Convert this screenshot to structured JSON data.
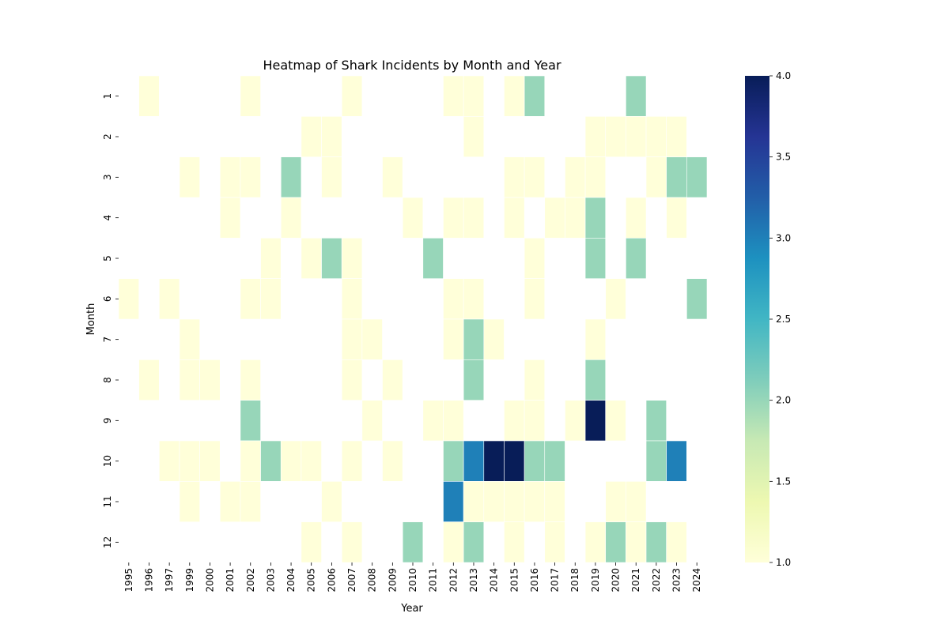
{
  "chart_data": {
    "type": "heatmap",
    "title": "Heatmap of Shark Incidents by Month and Year",
    "xlabel": "Year",
    "ylabel": "Month",
    "x_categories": [
      "1995",
      "1996",
      "1997",
      "1999",
      "2000",
      "2001",
      "2002",
      "2003",
      "2004",
      "2005",
      "2006",
      "2007",
      "2008",
      "2009",
      "2010",
      "2011",
      "2012",
      "2013",
      "2014",
      "2015",
      "2016",
      "2017",
      "2018",
      "2019",
      "2020",
      "2021",
      "2022",
      "2023",
      "2024"
    ],
    "y_categories": [
      "1",
      "2",
      "3",
      "4",
      "5",
      "6",
      "7",
      "8",
      "9",
      "10",
      "11",
      "12"
    ],
    "cells": [
      {
        "year": "1996",
        "month": "1",
        "value": 1
      },
      {
        "year": "2002",
        "month": "1",
        "value": 1
      },
      {
        "year": "2007",
        "month": "1",
        "value": 1
      },
      {
        "year": "2012",
        "month": "1",
        "value": 1
      },
      {
        "year": "2013",
        "month": "1",
        "value": 1
      },
      {
        "year": "2015",
        "month": "1",
        "value": 1
      },
      {
        "year": "2016",
        "month": "1",
        "value": 2
      },
      {
        "year": "2021",
        "month": "1",
        "value": 2
      },
      {
        "year": "2005",
        "month": "2",
        "value": 1
      },
      {
        "year": "2006",
        "month": "2",
        "value": 1
      },
      {
        "year": "2013",
        "month": "2",
        "value": 1
      },
      {
        "year": "2019",
        "month": "2",
        "value": 1
      },
      {
        "year": "2020",
        "month": "2",
        "value": 1
      },
      {
        "year": "2021",
        "month": "2",
        "value": 1
      },
      {
        "year": "2022",
        "month": "2",
        "value": 1
      },
      {
        "year": "2023",
        "month": "2",
        "value": 1
      },
      {
        "year": "1999",
        "month": "3",
        "value": 1
      },
      {
        "year": "2001",
        "month": "3",
        "value": 1
      },
      {
        "year": "2002",
        "month": "3",
        "value": 1
      },
      {
        "year": "2004",
        "month": "3",
        "value": 2
      },
      {
        "year": "2006",
        "month": "3",
        "value": 1
      },
      {
        "year": "2009",
        "month": "3",
        "value": 1
      },
      {
        "year": "2015",
        "month": "3",
        "value": 1
      },
      {
        "year": "2016",
        "month": "3",
        "value": 1
      },
      {
        "year": "2018",
        "month": "3",
        "value": 1
      },
      {
        "year": "2019",
        "month": "3",
        "value": 1
      },
      {
        "year": "2022",
        "month": "3",
        "value": 1
      },
      {
        "year": "2023",
        "month": "3",
        "value": 2
      },
      {
        "year": "2024",
        "month": "3",
        "value": 2
      },
      {
        "year": "2001",
        "month": "4",
        "value": 1
      },
      {
        "year": "2004",
        "month": "4",
        "value": 1
      },
      {
        "year": "2010",
        "month": "4",
        "value": 1
      },
      {
        "year": "2012",
        "month": "4",
        "value": 1
      },
      {
        "year": "2013",
        "month": "4",
        "value": 1
      },
      {
        "year": "2015",
        "month": "4",
        "value": 1
      },
      {
        "year": "2017",
        "month": "4",
        "value": 1
      },
      {
        "year": "2018",
        "month": "4",
        "value": 1
      },
      {
        "year": "2019",
        "month": "4",
        "value": 2
      },
      {
        "year": "2021",
        "month": "4",
        "value": 1
      },
      {
        "year": "2023",
        "month": "4",
        "value": 1
      },
      {
        "year": "2003",
        "month": "5",
        "value": 1
      },
      {
        "year": "2005",
        "month": "5",
        "value": 1
      },
      {
        "year": "2006",
        "month": "5",
        "value": 2
      },
      {
        "year": "2007",
        "month": "5",
        "value": 1
      },
      {
        "year": "2011",
        "month": "5",
        "value": 2
      },
      {
        "year": "2016",
        "month": "5",
        "value": 1
      },
      {
        "year": "2019",
        "month": "5",
        "value": 2
      },
      {
        "year": "2021",
        "month": "5",
        "value": 2
      },
      {
        "year": "1995",
        "month": "6",
        "value": 1
      },
      {
        "year": "1997",
        "month": "6",
        "value": 1
      },
      {
        "year": "2002",
        "month": "6",
        "value": 1
      },
      {
        "year": "2003",
        "month": "6",
        "value": 1
      },
      {
        "year": "2007",
        "month": "6",
        "value": 1
      },
      {
        "year": "2012",
        "month": "6",
        "value": 1
      },
      {
        "year": "2013",
        "month": "6",
        "value": 1
      },
      {
        "year": "2016",
        "month": "6",
        "value": 1
      },
      {
        "year": "2020",
        "month": "6",
        "value": 1
      },
      {
        "year": "2024",
        "month": "6",
        "value": 2
      },
      {
        "year": "1999",
        "month": "7",
        "value": 1
      },
      {
        "year": "2007",
        "month": "7",
        "value": 1
      },
      {
        "year": "2008",
        "month": "7",
        "value": 1
      },
      {
        "year": "2012",
        "month": "7",
        "value": 1
      },
      {
        "year": "2013",
        "month": "7",
        "value": 2
      },
      {
        "year": "2014",
        "month": "7",
        "value": 1
      },
      {
        "year": "2019",
        "month": "7",
        "value": 1
      },
      {
        "year": "1996",
        "month": "8",
        "value": 1
      },
      {
        "year": "1999",
        "month": "8",
        "value": 1
      },
      {
        "year": "2000",
        "month": "8",
        "value": 1
      },
      {
        "year": "2002",
        "month": "8",
        "value": 1
      },
      {
        "year": "2007",
        "month": "8",
        "value": 1
      },
      {
        "year": "2009",
        "month": "8",
        "value": 1
      },
      {
        "year": "2013",
        "month": "8",
        "value": 2
      },
      {
        "year": "2016",
        "month": "8",
        "value": 1
      },
      {
        "year": "2019",
        "month": "8",
        "value": 2
      },
      {
        "year": "2002",
        "month": "9",
        "value": 2
      },
      {
        "year": "2008",
        "month": "9",
        "value": 1
      },
      {
        "year": "2011",
        "month": "9",
        "value": 1
      },
      {
        "year": "2012",
        "month": "9",
        "value": 1
      },
      {
        "year": "2015",
        "month": "9",
        "value": 1
      },
      {
        "year": "2016",
        "month": "9",
        "value": 1
      },
      {
        "year": "2018",
        "month": "9",
        "value": 1
      },
      {
        "year": "2019",
        "month": "9",
        "value": 4
      },
      {
        "year": "2020",
        "month": "9",
        "value": 1
      },
      {
        "year": "2022",
        "month": "9",
        "value": 2
      },
      {
        "year": "1997",
        "month": "10",
        "value": 1
      },
      {
        "year": "1999",
        "month": "10",
        "value": 1
      },
      {
        "year": "2000",
        "month": "10",
        "value": 1
      },
      {
        "year": "2002",
        "month": "10",
        "value": 1
      },
      {
        "year": "2003",
        "month": "10",
        "value": 2
      },
      {
        "year": "2004",
        "month": "10",
        "value": 1
      },
      {
        "year": "2005",
        "month": "10",
        "value": 1
      },
      {
        "year": "2007",
        "month": "10",
        "value": 1
      },
      {
        "year": "2009",
        "month": "10",
        "value": 1
      },
      {
        "year": "2012",
        "month": "10",
        "value": 2
      },
      {
        "year": "2013",
        "month": "10",
        "value": 3
      },
      {
        "year": "2014",
        "month": "10",
        "value": 4
      },
      {
        "year": "2015",
        "month": "10",
        "value": 4
      },
      {
        "year": "2016",
        "month": "10",
        "value": 2
      },
      {
        "year": "2017",
        "month": "10",
        "value": 2
      },
      {
        "year": "2022",
        "month": "10",
        "value": 2
      },
      {
        "year": "2023",
        "month": "10",
        "value": 3
      },
      {
        "year": "1999",
        "month": "11",
        "value": 1
      },
      {
        "year": "2001",
        "month": "11",
        "value": 1
      },
      {
        "year": "2002",
        "month": "11",
        "value": 1
      },
      {
        "year": "2006",
        "month": "11",
        "value": 1
      },
      {
        "year": "2012",
        "month": "11",
        "value": 3
      },
      {
        "year": "2013",
        "month": "11",
        "value": 1
      },
      {
        "year": "2014",
        "month": "11",
        "value": 1
      },
      {
        "year": "2015",
        "month": "11",
        "value": 1
      },
      {
        "year": "2016",
        "month": "11",
        "value": 1
      },
      {
        "year": "2017",
        "month": "11",
        "value": 1
      },
      {
        "year": "2020",
        "month": "11",
        "value": 1
      },
      {
        "year": "2021",
        "month": "11",
        "value": 1
      },
      {
        "year": "2005",
        "month": "12",
        "value": 1
      },
      {
        "year": "2007",
        "month": "12",
        "value": 1
      },
      {
        "year": "2010",
        "month": "12",
        "value": 2
      },
      {
        "year": "2012",
        "month": "12",
        "value": 1
      },
      {
        "year": "2013",
        "month": "12",
        "value": 2
      },
      {
        "year": "2015",
        "month": "12",
        "value": 1
      },
      {
        "year": "2017",
        "month": "12",
        "value": 1
      },
      {
        "year": "2019",
        "month": "12",
        "value": 1
      },
      {
        "year": "2020",
        "month": "12",
        "value": 2
      },
      {
        "year": "2021",
        "month": "12",
        "value": 1
      },
      {
        "year": "2022",
        "month": "12",
        "value": 2
      },
      {
        "year": "2023",
        "month": "12",
        "value": 1
      }
    ],
    "colorbar": {
      "vmin": 1.0,
      "vmax": 4.0,
      "ticks": [
        "1.0",
        "1.5",
        "2.0",
        "2.5",
        "3.0",
        "3.5",
        "4.0"
      ],
      "colormap": "YlGnBu",
      "colors": [
        {
          "value": 1.0,
          "color": "#ffffd9"
        },
        {
          "value": 1.375,
          "color": "#edf8b1"
        },
        {
          "value": 1.75,
          "color": "#c7e9b4"
        },
        {
          "value": 2.125,
          "color": "#7fcdbb"
        },
        {
          "value": 2.5,
          "color": "#41b6c4"
        },
        {
          "value": 2.875,
          "color": "#1d91c0"
        },
        {
          "value": 3.25,
          "color": "#225ea8"
        },
        {
          "value": 3.625,
          "color": "#253494"
        },
        {
          "value": 4.0,
          "color": "#081d58"
        }
      ]
    }
  }
}
